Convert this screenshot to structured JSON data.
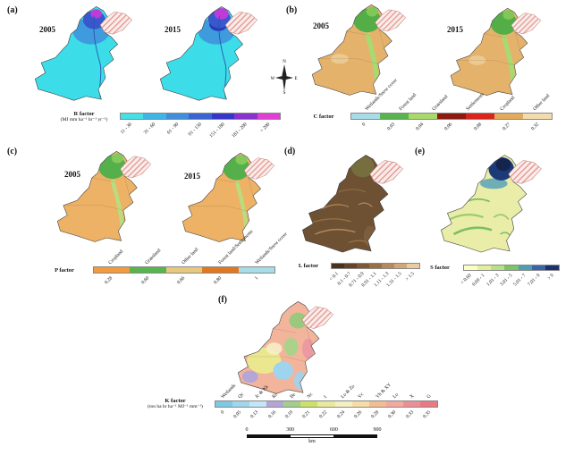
{
  "figure": {
    "background": "#ffffff"
  },
  "compass": {
    "n": "N",
    "e": "E",
    "s": "S",
    "w": "W"
  },
  "scalebar": {
    "ticks": [
      "0",
      "300",
      "600",
      "900"
    ],
    "unit": "km"
  },
  "panels": {
    "a": {
      "tag": "(a)",
      "years": [
        "2005",
        "2015"
      ],
      "legend": {
        "title": "R factor",
        "subtitle": "(MJ mm ha⁻¹ hr⁻¹ yr⁻¹)",
        "colors": [
          "#45e0e6",
          "#3fb4e6",
          "#418fdc",
          "#3a64d2",
          "#3437c8",
          "#8833cc",
          "#e03fd6"
        ],
        "bottom_labels": [
          "11 - 30",
          "31 - 60",
          "61 - 90",
          "91 - 150",
          "151 - 180",
          "181 - 200",
          "> 200"
        ]
      }
    },
    "b": {
      "tag": "(b)",
      "years": [
        "2005",
        "2015"
      ],
      "legend": {
        "title": "C factor",
        "colors": [
          "#a8dce8",
          "#58b44e",
          "#a8d96a",
          "#8b1a10",
          "#d7251c",
          "#e2aa5c",
          "#f2dcae"
        ],
        "top_labels": [
          "Wetlands/Snow cover",
          "Forest land",
          "Grassland",
          "Settlements",
          "Cropland",
          "Other land"
        ],
        "bottom_labels": [
          "0",
          "0.03",
          "0.04",
          "0.06",
          "0.08",
          "0.27",
          "0.32"
        ]
      }
    },
    "c": {
      "tag": "(c)",
      "years": [
        "2005",
        "2015"
      ],
      "legend": {
        "title": "P factor",
        "colors": [
          "#f29a3c",
          "#58b44e",
          "#e8c87e",
          "#e07820",
          "#a8dce8"
        ],
        "top_labels": [
          "Cropland",
          "Grassland",
          "Other land",
          "Forest land/Settlements",
          "Wetlands/Snow cover"
        ],
        "bottom_labels": [
          "0.28",
          "0.60",
          "0.66",
          "0.80",
          "1"
        ]
      }
    },
    "d": {
      "tag": "(d)",
      "legend": {
        "title": "L factor",
        "colors": [
          "#4a3220",
          "#63432a",
          "#7d5836",
          "#996f46",
          "#b58a5c",
          "#d0a878",
          "#e9cda0"
        ],
        "bottom_labels": [
          "< 0.1",
          "0.1 - 0.7",
          "0.71 - 0.9",
          "0.91 - 1.1",
          "1.11 - 1.3",
          "1.31 - 1.5",
          "> 1.5"
        ]
      }
    },
    "e": {
      "tag": "(e)",
      "legend": {
        "title": "S factor",
        "colors": [
          "#fdfdc8",
          "#e4ef9e",
          "#b9e086",
          "#7cc465",
          "#4a9fb0",
          "#3a64a8",
          "#1c2f6e"
        ],
        "bottom_labels": [
          "< 0.69",
          "0.69 - 1",
          "1.01 - 3",
          "3.01 - 5",
          "5.01 - 7",
          "7.01 - 9",
          "> 9"
        ]
      }
    },
    "f": {
      "tag": "(f)",
      "legend": {
        "title": "K factor",
        "subtitle": "(ton ha hr ha⁻¹ MJ⁻¹ mm⁻¹)",
        "colors": [
          "#7ec8e3",
          "#9ed6ee",
          "#c2e6f5",
          "#b3a5d6",
          "#a3cf8d",
          "#cbe26a",
          "#e9ea9a",
          "#f5f0c2",
          "#f7dca6",
          "#f3bd92",
          "#f2a99e",
          "#ea8f96",
          "#e97a85"
        ],
        "top_labels": [
          "Wetlands",
          "Qc",
          "Jc & Xk",
          "Rc",
          "Be",
          "Nc",
          "I",
          "Lo & Zo",
          "Vc",
          "Yh & XY",
          "Lo",
          "X",
          "G"
        ],
        "bottom_labels": [
          "0",
          "0.05",
          "0.13",
          "0.16",
          "0.19",
          "0.21",
          "0.22",
          "0.24",
          "0.26",
          "0.28",
          "0.30",
          "0.33",
          "0.35"
        ]
      }
    }
  }
}
